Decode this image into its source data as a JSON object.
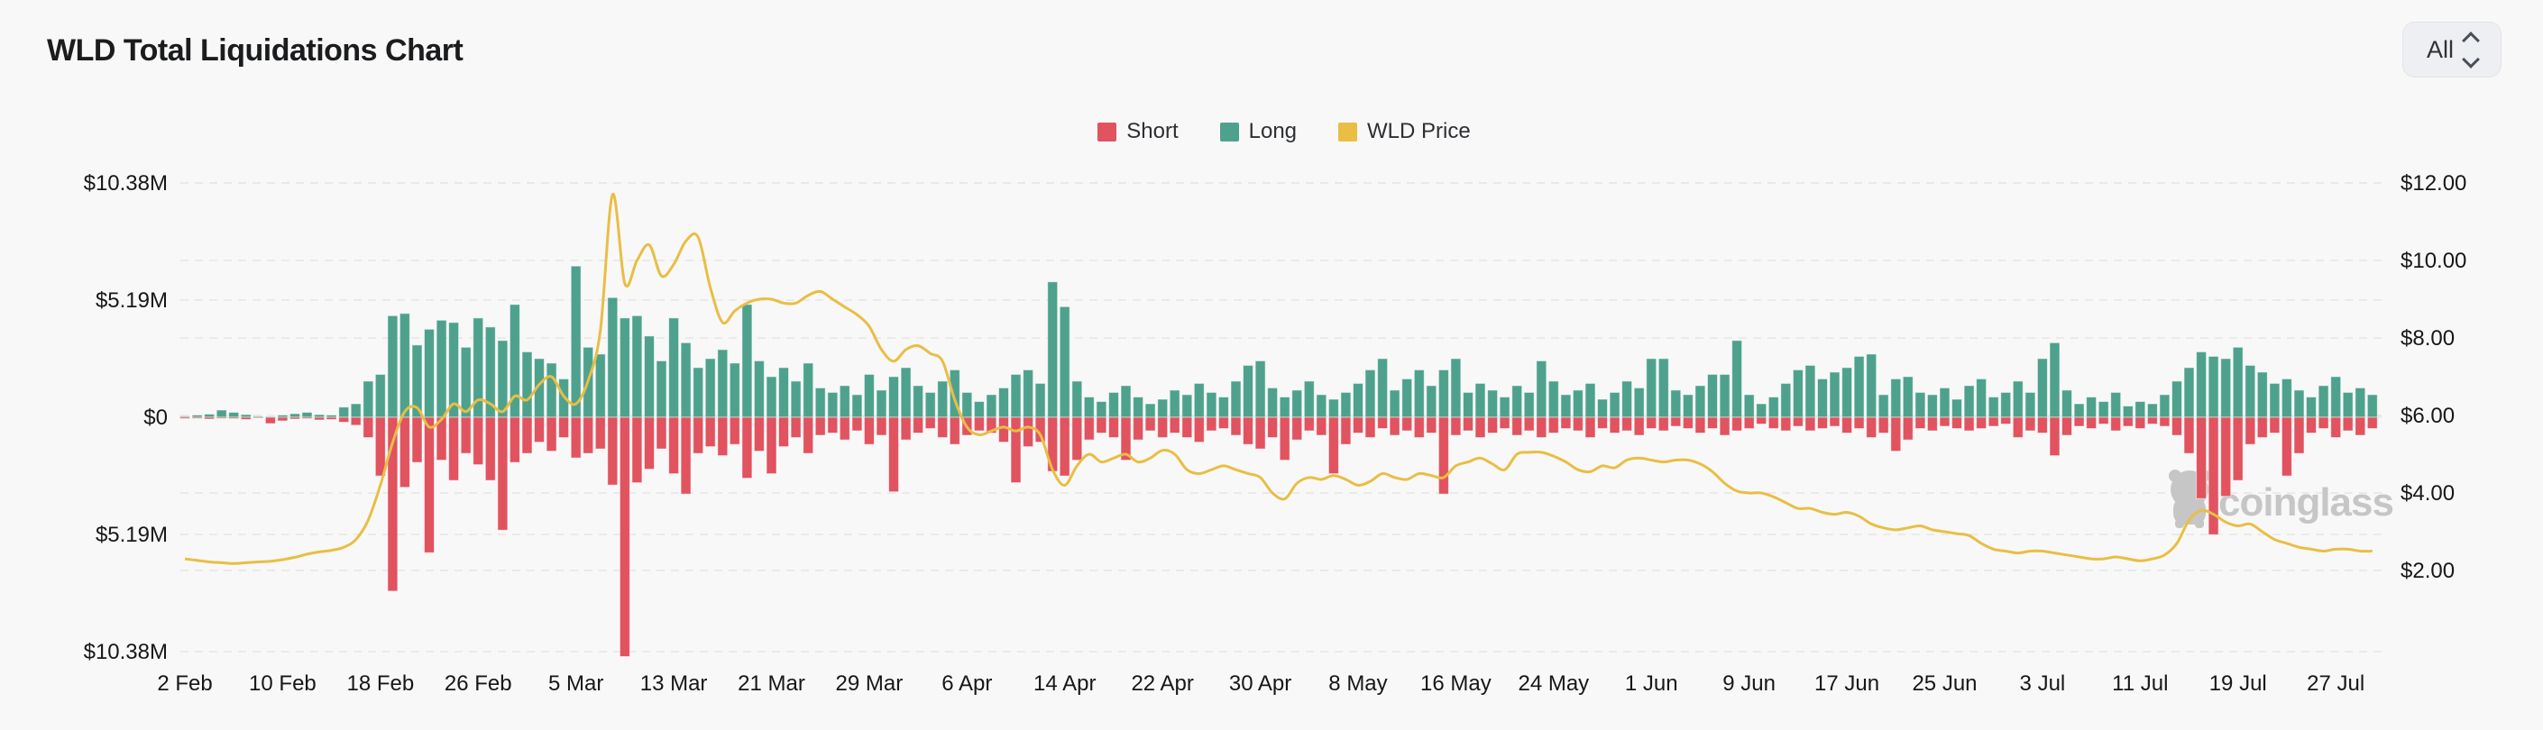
{
  "header": {
    "title": "WLD Total Liquidations Chart",
    "range_selector": {
      "value": "All"
    }
  },
  "watermark": {
    "text": "coinglass"
  },
  "colors": {
    "short": "#E0535F",
    "long": "#4EA28D",
    "price": "#E9BE44",
    "background": "#f8f8f8",
    "grid": "#e5e5e5",
    "axis_text": "#161718",
    "watermark": "#c6c6c6"
  },
  "chart_data": {
    "type": "bar",
    "title": "WLD Total Liquidations Chart",
    "legend": [
      {
        "label": "Short",
        "color": "#E0535F"
      },
      {
        "label": "Long",
        "color": "#4EA28D"
      },
      {
        "label": "WLD Price",
        "color": "#E9BE44"
      }
    ],
    "left_axis": {
      "title": "Liquidations (USD)",
      "labels": [
        "$10.38M",
        "$5.19M",
        "$0",
        "$5.19M",
        "$10.38M"
      ],
      "values_m": [
        10.38,
        5.19,
        0,
        -5.19,
        -10.38
      ]
    },
    "right_axis": {
      "title": "WLD Price (USD)",
      "labels": [
        "$12.00",
        "$10.00",
        "$8.00",
        "$6.00",
        "$4.00",
        "$2.00"
      ],
      "values": [
        12,
        10,
        8,
        6,
        4,
        2
      ]
    },
    "x_tick_labels": [
      "2 Feb",
      "10 Feb",
      "18 Feb",
      "26 Feb",
      "5 Mar",
      "13 Mar",
      "21 Mar",
      "29 Mar",
      "6 Apr",
      "14 Apr",
      "22 Apr",
      "30 Apr",
      "8 May",
      "16 May",
      "24 May",
      "1 Jun",
      "9 Jun",
      "17 Jun",
      "25 Jun",
      "3 Jul",
      "11 Jul",
      "19 Jul",
      "27 Jul"
    ],
    "x_tick_day_index": [
      0,
      8,
      16,
      24,
      32,
      40,
      48,
      56,
      64,
      72,
      80,
      88,
      96,
      104,
      112,
      120,
      128,
      136,
      144,
      152,
      160,
      168,
      176
    ],
    "n_days": 180,
    "series": [
      {
        "name": "Long",
        "type": "bar",
        "direction": "up",
        "unit": "USD millions",
        "values": [
          0.05,
          0.1,
          0.14,
          0.32,
          0.22,
          0.12,
          0.05,
          0.04,
          0.1,
          0.16,
          0.22,
          0.12,
          0.1,
          0.45,
          0.6,
          1.6,
          1.9,
          4.5,
          4.6,
          3.2,
          3.9,
          4.3,
          4.2,
          3.1,
          4.4,
          4.0,
          3.4,
          5.0,
          2.9,
          2.6,
          2.4,
          1.7,
          6.7,
          3.1,
          2.8,
          5.3,
          4.4,
          4.5,
          3.6,
          2.5,
          4.4,
          3.3,
          2.2,
          2.6,
          3.0,
          2.4,
          5.0,
          2.5,
          1.8,
          2.2,
          1.6,
          2.4,
          1.3,
          1.1,
          1.4,
          1.0,
          1.9,
          1.2,
          1.8,
          2.2,
          1.4,
          1.1,
          1.6,
          2.1,
          1.1,
          0.7,
          1.0,
          1.3,
          1.9,
          2.1,
          1.5,
          6.0,
          4.9,
          1.6,
          0.9,
          0.7,
          1.1,
          1.4,
          0.9,
          0.6,
          0.8,
          1.2,
          1.0,
          1.5,
          1.1,
          0.9,
          1.6,
          2.3,
          2.5,
          1.3,
          0.9,
          1.2,
          1.6,
          1.0,
          0.8,
          1.1,
          1.5,
          2.1,
          2.6,
          1.2,
          1.7,
          2.1,
          1.4,
          2.1,
          2.6,
          1.1,
          1.5,
          1.2,
          0.9,
          1.4,
          1.1,
          2.5,
          1.6,
          1.0,
          1.2,
          1.5,
          0.8,
          1.1,
          1.6,
          1.3,
          2.6,
          2.6,
          1.2,
          1.0,
          1.4,
          1.9,
          1.9,
          3.4,
          1.0,
          0.6,
          0.9,
          1.5,
          2.1,
          2.3,
          1.7,
          2.0,
          2.2,
          2.7,
          2.8,
          1.0,
          1.7,
          1.8,
          1.1,
          1.0,
          1.3,
          0.8,
          1.4,
          1.7,
          0.9,
          1.1,
          1.6,
          1.1,
          2.6,
          3.3,
          1.2,
          0.6,
          0.9,
          0.7,
          1.1,
          0.5,
          0.7,
          0.6,
          1.0,
          1.6,
          2.2,
          2.9,
          2.7,
          2.6,
          3.1,
          2.3,
          2.0,
          1.5,
          1.7,
          1.2,
          0.9,
          1.4,
          1.8,
          1.1,
          1.3,
          1.0
        ]
      },
      {
        "name": "Short",
        "type": "bar",
        "direction": "down",
        "unit": "USD millions",
        "values": [
          0.06,
          0.05,
          0.08,
          0.05,
          0.06,
          0.1,
          0.04,
          0.28,
          0.16,
          0.08,
          0.06,
          0.12,
          0.1,
          0.22,
          0.35,
          0.9,
          2.6,
          7.7,
          3.1,
          2.0,
          6.0,
          1.9,
          2.8,
          1.6,
          2.1,
          2.8,
          5.0,
          2.0,
          1.6,
          1.1,
          1.5,
          0.9,
          1.8,
          1.6,
          1.4,
          3.0,
          10.6,
          2.9,
          2.3,
          1.4,
          2.5,
          3.4,
          1.6,
          1.3,
          1.7,
          1.2,
          2.7,
          1.5,
          2.5,
          1.3,
          0.9,
          1.6,
          0.8,
          0.7,
          1.0,
          0.6,
          1.2,
          0.8,
          3.3,
          1.0,
          0.7,
          0.5,
          0.9,
          1.2,
          0.8,
          0.6,
          0.7,
          1.1,
          2.9,
          1.3,
          1.1,
          2.4,
          2.6,
          1.9,
          1.0,
          0.7,
          0.9,
          1.9,
          1.0,
          0.6,
          0.9,
          0.7,
          0.9,
          1.1,
          0.6,
          0.5,
          0.8,
          1.2,
          1.4,
          0.9,
          1.9,
          1.0,
          0.6,
          0.8,
          2.5,
          1.2,
          0.7,
          0.9,
          0.5,
          0.8,
          0.6,
          0.9,
          0.7,
          3.4,
          0.8,
          0.6,
          0.9,
          0.7,
          0.5,
          0.8,
          0.6,
          0.9,
          0.7,
          0.5,
          0.6,
          0.9,
          0.5,
          0.7,
          0.6,
          0.8,
          0.5,
          0.6,
          0.4,
          0.5,
          0.7,
          0.5,
          0.8,
          0.6,
          0.5,
          0.3,
          0.5,
          0.6,
          0.4,
          0.6,
          0.5,
          0.4,
          0.7,
          0.5,
          0.9,
          0.7,
          1.5,
          1.0,
          0.5,
          0.6,
          0.4,
          0.5,
          0.6,
          0.5,
          0.4,
          0.3,
          0.9,
          0.6,
          0.7,
          1.7,
          0.8,
          0.4,
          0.5,
          0.3,
          0.6,
          0.4,
          0.5,
          0.3,
          0.4,
          0.8,
          1.6,
          3.6,
          5.2,
          3.5,
          2.8,
          1.2,
          0.9,
          0.7,
          2.6,
          1.6,
          0.7,
          0.5,
          0.9,
          0.6,
          0.8,
          0.5
        ]
      },
      {
        "name": "WLD Price",
        "type": "line",
        "unit": "USD",
        "values": [
          2.3,
          2.26,
          2.22,
          2.2,
          2.18,
          2.2,
          2.22,
          2.24,
          2.28,
          2.34,
          2.42,
          2.48,
          2.52,
          2.6,
          2.8,
          3.3,
          4.2,
          5.3,
          6.1,
          6.2,
          5.7,
          5.9,
          6.3,
          6.1,
          6.4,
          6.3,
          6.1,
          6.5,
          6.4,
          6.8,
          7.0,
          6.5,
          6.3,
          6.9,
          8.2,
          11.7,
          9.4,
          10.0,
          10.4,
          9.6,
          9.9,
          10.5,
          10.6,
          9.3,
          8.4,
          8.7,
          8.9,
          9.0,
          9.0,
          8.9,
          8.9,
          9.1,
          9.2,
          9.0,
          8.8,
          8.6,
          8.3,
          7.7,
          7.4,
          7.7,
          7.8,
          7.6,
          7.4,
          6.4,
          5.7,
          5.5,
          5.6,
          5.7,
          5.6,
          5.7,
          5.5,
          4.6,
          4.2,
          4.7,
          5.0,
          4.8,
          4.9,
          5.0,
          4.8,
          4.9,
          5.1,
          5.0,
          4.6,
          4.5,
          4.6,
          4.7,
          4.6,
          4.5,
          4.4,
          4.0,
          3.85,
          4.25,
          4.4,
          4.35,
          4.45,
          4.35,
          4.2,
          4.3,
          4.5,
          4.4,
          4.35,
          4.5,
          4.45,
          4.4,
          4.7,
          4.8,
          4.9,
          4.75,
          4.6,
          5.0,
          5.05,
          5.05,
          4.95,
          4.8,
          4.6,
          4.55,
          4.7,
          4.65,
          4.85,
          4.9,
          4.85,
          4.8,
          4.85,
          4.85,
          4.75,
          4.55,
          4.25,
          4.05,
          4.0,
          4.0,
          3.9,
          3.75,
          3.6,
          3.6,
          3.5,
          3.45,
          3.5,
          3.4,
          3.2,
          3.1,
          3.05,
          3.1,
          3.15,
          3.05,
          3.0,
          2.95,
          2.9,
          2.7,
          2.55,
          2.5,
          2.45,
          2.5,
          2.5,
          2.45,
          2.4,
          2.35,
          2.3,
          2.3,
          2.35,
          2.3,
          2.25,
          2.3,
          2.4,
          2.7,
          3.3,
          3.55,
          3.45,
          3.25,
          3.15,
          3.2,
          3.0,
          2.8,
          2.7,
          2.6,
          2.55,
          2.5,
          2.55,
          2.55,
          2.5,
          2.5
        ]
      }
    ]
  }
}
